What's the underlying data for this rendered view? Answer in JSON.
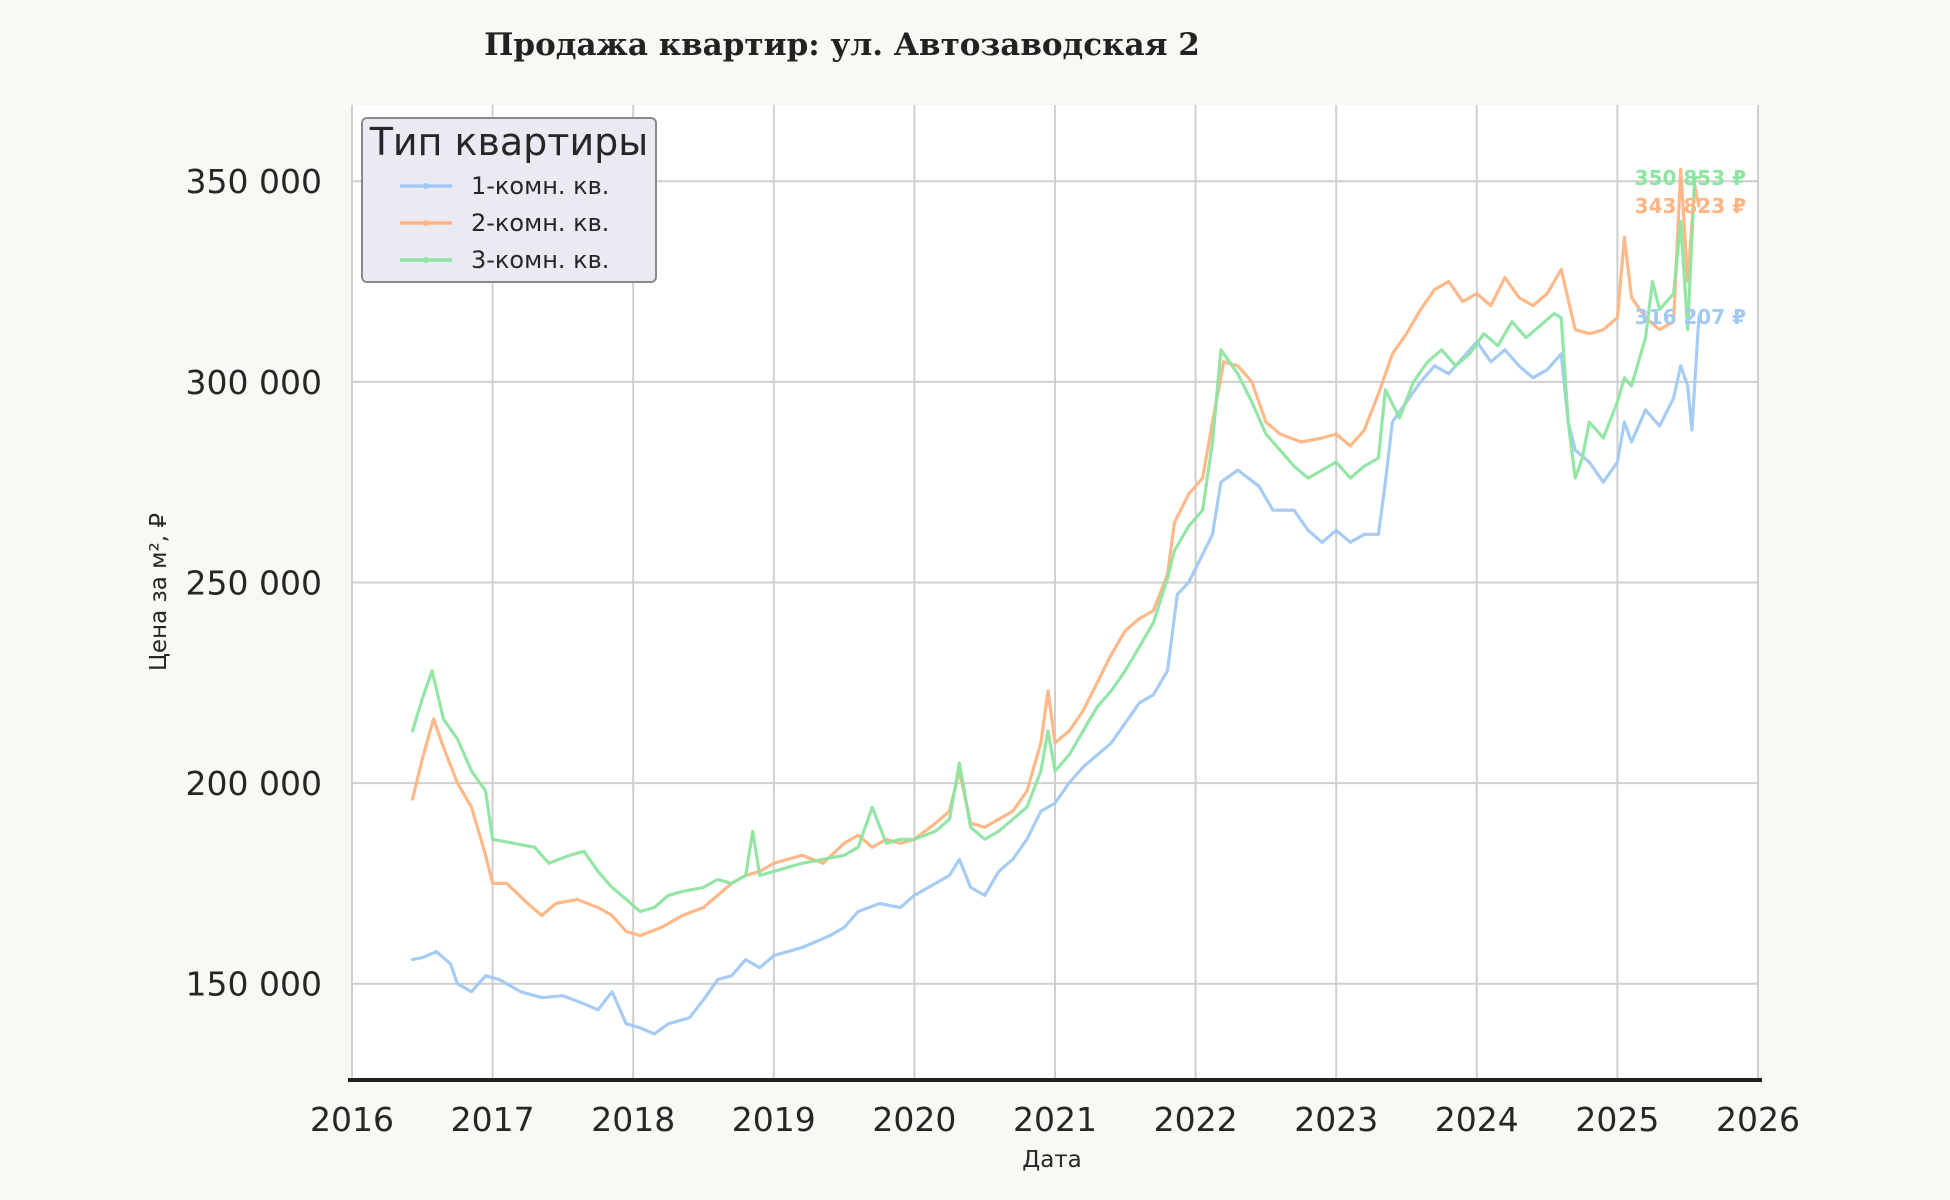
{
  "chart_data": {
    "type": "line",
    "title": "Продажа квартир: ул. Автозаводская 2",
    "xlabel": "Дата",
    "ylabel": "Цена за м², ₽",
    "xlim": [
      2016,
      2026
    ],
    "ylim": [
      126000,
      369000
    ],
    "x_ticks": [
      2016,
      2017,
      2018,
      2019,
      2020,
      2021,
      2022,
      2023,
      2024,
      2025,
      2026
    ],
    "x_tick_labels": [
      "2016",
      "2017",
      "2018",
      "2019",
      "2020",
      "2021",
      "2022",
      "2023",
      "2024",
      "2025",
      "2026"
    ],
    "y_ticks": [
      150000,
      200000,
      250000,
      300000,
      350000
    ],
    "y_tick_labels": [
      "150 000",
      "200 000",
      "250 000",
      "300 000",
      "350 000"
    ],
    "grid": true,
    "legend": {
      "title": "Тип квартиры",
      "placement": "top-left"
    },
    "series": [
      {
        "name": "1-комн. кв.",
        "color": "#a1c9f4",
        "end_label": "316 207 ₽",
        "points": [
          [
            2016.43,
            156000
          ],
          [
            2016.5,
            156500
          ],
          [
            2016.6,
            158000
          ],
          [
            2016.7,
            155000
          ],
          [
            2016.75,
            150000
          ],
          [
            2016.85,
            148000
          ],
          [
            2016.95,
            152000
          ],
          [
            2017.05,
            151000
          ],
          [
            2017.2,
            148000
          ],
          [
            2017.35,
            146500
          ],
          [
            2017.5,
            147000
          ],
          [
            2017.65,
            145000
          ],
          [
            2017.75,
            143500
          ],
          [
            2017.85,
            148000
          ],
          [
            2017.95,
            140000
          ],
          [
            2018.05,
            139000
          ],
          [
            2018.15,
            137500
          ],
          [
            2018.25,
            140000
          ],
          [
            2018.4,
            141500
          ],
          [
            2018.5,
            146000
          ],
          [
            2018.6,
            151000
          ],
          [
            2018.7,
            152000
          ],
          [
            2018.8,
            156000
          ],
          [
            2018.9,
            154000
          ],
          [
            2019.0,
            157000
          ],
          [
            2019.2,
            159000
          ],
          [
            2019.4,
            162000
          ],
          [
            2019.5,
            164000
          ],
          [
            2019.6,
            168000
          ],
          [
            2019.75,
            170000
          ],
          [
            2019.9,
            169000
          ],
          [
            2020.0,
            172000
          ],
          [
            2020.15,
            175000
          ],
          [
            2020.25,
            177000
          ],
          [
            2020.32,
            181000
          ],
          [
            2020.4,
            174000
          ],
          [
            2020.5,
            172000
          ],
          [
            2020.6,
            178000
          ],
          [
            2020.7,
            181000
          ],
          [
            2020.8,
            186000
          ],
          [
            2020.9,
            193000
          ],
          [
            2021.0,
            195000
          ],
          [
            2021.1,
            200000
          ],
          [
            2021.2,
            204000
          ],
          [
            2021.3,
            207000
          ],
          [
            2021.4,
            210000
          ],
          [
            2021.5,
            215000
          ],
          [
            2021.6,
            220000
          ],
          [
            2021.7,
            222000
          ],
          [
            2021.8,
            228000
          ],
          [
            2021.87,
            247000
          ],
          [
            2021.95,
            250000
          ],
          [
            2022.05,
            257000
          ],
          [
            2022.12,
            262000
          ],
          [
            2022.18,
            275000
          ],
          [
            2022.3,
            278000
          ],
          [
            2022.45,
            274000
          ],
          [
            2022.55,
            268000
          ],
          [
            2022.7,
            268000
          ],
          [
            2022.8,
            263000
          ],
          [
            2022.9,
            260000
          ],
          [
            2023.0,
            263000
          ],
          [
            2023.1,
            260000
          ],
          [
            2023.2,
            262000
          ],
          [
            2023.3,
            262000
          ],
          [
            2023.35,
            275000
          ],
          [
            2023.4,
            290000
          ],
          [
            2023.5,
            295000
          ],
          [
            2023.6,
            300000
          ],
          [
            2023.7,
            304000
          ],
          [
            2023.8,
            302000
          ],
          [
            2023.9,
            306000
          ],
          [
            2024.0,
            310000
          ],
          [
            2024.1,
            305000
          ],
          [
            2024.2,
            308000
          ],
          [
            2024.3,
            304000
          ],
          [
            2024.4,
            301000
          ],
          [
            2024.5,
            303000
          ],
          [
            2024.6,
            307000
          ],
          [
            2024.65,
            290000
          ],
          [
            2024.7,
            283000
          ],
          [
            2024.8,
            280000
          ],
          [
            2024.9,
            275000
          ],
          [
            2025.0,
            280000
          ],
          [
            2025.05,
            290000
          ],
          [
            2025.1,
            285000
          ],
          [
            2025.2,
            293000
          ],
          [
            2025.3,
            289000
          ],
          [
            2025.4,
            296000
          ],
          [
            2025.45,
            304000
          ],
          [
            2025.5,
            299000
          ],
          [
            2025.53,
            288000
          ],
          [
            2025.58,
            316207
          ]
        ]
      },
      {
        "name": "2-комн. кв.",
        "color": "#ffb482",
        "end_label": "343 823 ₽",
        "points": [
          [
            2016.43,
            196000
          ],
          [
            2016.5,
            206000
          ],
          [
            2016.58,
            216000
          ],
          [
            2016.65,
            209000
          ],
          [
            2016.75,
            200000
          ],
          [
            2016.85,
            194000
          ],
          [
            2016.95,
            182000
          ],
          [
            2017.0,
            175000
          ],
          [
            2017.1,
            175000
          ],
          [
            2017.25,
            170000
          ],
          [
            2017.35,
            167000
          ],
          [
            2017.45,
            170000
          ],
          [
            2017.6,
            171000
          ],
          [
            2017.75,
            169000
          ],
          [
            2017.85,
            167000
          ],
          [
            2017.95,
            163000
          ],
          [
            2018.05,
            162000
          ],
          [
            2018.2,
            164000
          ],
          [
            2018.35,
            167000
          ],
          [
            2018.5,
            169000
          ],
          [
            2018.6,
            172000
          ],
          [
            2018.7,
            175000
          ],
          [
            2018.8,
            177000
          ],
          [
            2018.9,
            178000
          ],
          [
            2019.0,
            180000
          ],
          [
            2019.2,
            182000
          ],
          [
            2019.35,
            180000
          ],
          [
            2019.5,
            185000
          ],
          [
            2019.6,
            187000
          ],
          [
            2019.7,
            184000
          ],
          [
            2019.8,
            186000
          ],
          [
            2019.9,
            185000
          ],
          [
            2020.0,
            186000
          ],
          [
            2020.15,
            190000
          ],
          [
            2020.25,
            193000
          ],
          [
            2020.32,
            203000
          ],
          [
            2020.4,
            190000
          ],
          [
            2020.5,
            189000
          ],
          [
            2020.6,
            191000
          ],
          [
            2020.7,
            193000
          ],
          [
            2020.8,
            198000
          ],
          [
            2020.9,
            210000
          ],
          [
            2020.95,
            223000
          ],
          [
            2021.0,
            210000
          ],
          [
            2021.1,
            213000
          ],
          [
            2021.2,
            218000
          ],
          [
            2021.3,
            225000
          ],
          [
            2021.4,
            232000
          ],
          [
            2021.5,
            238000
          ],
          [
            2021.6,
            241000
          ],
          [
            2021.7,
            243000
          ],
          [
            2021.8,
            252000
          ],
          [
            2021.85,
            265000
          ],
          [
            2021.95,
            272000
          ],
          [
            2022.05,
            276000
          ],
          [
            2022.12,
            290000
          ],
          [
            2022.2,
            305000
          ],
          [
            2022.3,
            304000
          ],
          [
            2022.4,
            300000
          ],
          [
            2022.5,
            290000
          ],
          [
            2022.6,
            287000
          ],
          [
            2022.75,
            285000
          ],
          [
            2022.9,
            286000
          ],
          [
            2023.0,
            287000
          ],
          [
            2023.1,
            284000
          ],
          [
            2023.2,
            288000
          ],
          [
            2023.3,
            297000
          ],
          [
            2023.4,
            307000
          ],
          [
            2023.5,
            312000
          ],
          [
            2023.6,
            318000
          ],
          [
            2023.7,
            323000
          ],
          [
            2023.8,
            325000
          ],
          [
            2023.9,
            320000
          ],
          [
            2024.0,
            322000
          ],
          [
            2024.1,
            319000
          ],
          [
            2024.2,
            326000
          ],
          [
            2024.3,
            321000
          ],
          [
            2024.4,
            319000
          ],
          [
            2024.5,
            322000
          ],
          [
            2024.6,
            328000
          ],
          [
            2024.7,
            313000
          ],
          [
            2024.8,
            312000
          ],
          [
            2024.9,
            313000
          ],
          [
            2025.0,
            316000
          ],
          [
            2025.05,
            336000
          ],
          [
            2025.1,
            321000
          ],
          [
            2025.2,
            316000
          ],
          [
            2025.3,
            313000
          ],
          [
            2025.4,
            315000
          ],
          [
            2025.45,
            353000
          ],
          [
            2025.5,
            325000
          ],
          [
            2025.55,
            349000
          ],
          [
            2025.58,
            343823
          ]
        ]
      },
      {
        "name": "3-комн. кв.",
        "color": "#8de5a1",
        "end_label": "350 853 ₽",
        "points": [
          [
            2016.43,
            213000
          ],
          [
            2016.5,
            221000
          ],
          [
            2016.57,
            228000
          ],
          [
            2016.65,
            216000
          ],
          [
            2016.75,
            211000
          ],
          [
            2016.85,
            203000
          ],
          [
            2016.95,
            198000
          ],
          [
            2017.0,
            186000
          ],
          [
            2017.15,
            185000
          ],
          [
            2017.3,
            184000
          ],
          [
            2017.4,
            180000
          ],
          [
            2017.55,
            182000
          ],
          [
            2017.65,
            183000
          ],
          [
            2017.75,
            178000
          ],
          [
            2017.85,
            174000
          ],
          [
            2017.95,
            171000
          ],
          [
            2018.05,
            168000
          ],
          [
            2018.15,
            169000
          ],
          [
            2018.25,
            172000
          ],
          [
            2018.35,
            173000
          ],
          [
            2018.5,
            174000
          ],
          [
            2018.6,
            176000
          ],
          [
            2018.7,
            175000
          ],
          [
            2018.8,
            177000
          ],
          [
            2018.85,
            188000
          ],
          [
            2018.9,
            177000
          ],
          [
            2019.0,
            178000
          ],
          [
            2019.2,
            180000
          ],
          [
            2019.35,
            181000
          ],
          [
            2019.5,
            182000
          ],
          [
            2019.6,
            184000
          ],
          [
            2019.7,
            194000
          ],
          [
            2019.8,
            185000
          ],
          [
            2019.9,
            186000
          ],
          [
            2020.0,
            186000
          ],
          [
            2020.15,
            188000
          ],
          [
            2020.25,
            191000
          ],
          [
            2020.32,
            205000
          ],
          [
            2020.4,
            189000
          ],
          [
            2020.5,
            186000
          ],
          [
            2020.6,
            188000
          ],
          [
            2020.7,
            191000
          ],
          [
            2020.8,
            194000
          ],
          [
            2020.9,
            203000
          ],
          [
            2020.95,
            213000
          ],
          [
            2021.0,
            203000
          ],
          [
            2021.1,
            207000
          ],
          [
            2021.2,
            213000
          ],
          [
            2021.3,
            219000
          ],
          [
            2021.4,
            223000
          ],
          [
            2021.5,
            228000
          ],
          [
            2021.6,
            234000
          ],
          [
            2021.7,
            240000
          ],
          [
            2021.8,
            251000
          ],
          [
            2021.85,
            258000
          ],
          [
            2021.95,
            264000
          ],
          [
            2022.05,
            268000
          ],
          [
            2022.12,
            285000
          ],
          [
            2022.18,
            308000
          ],
          [
            2022.3,
            302000
          ],
          [
            2022.4,
            295000
          ],
          [
            2022.5,
            287000
          ],
          [
            2022.6,
            283000
          ],
          [
            2022.7,
            279000
          ],
          [
            2022.8,
            276000
          ],
          [
            2022.9,
            278000
          ],
          [
            2023.0,
            280000
          ],
          [
            2023.1,
            276000
          ],
          [
            2023.2,
            279000
          ],
          [
            2023.3,
            281000
          ],
          [
            2023.35,
            298000
          ],
          [
            2023.45,
            291000
          ],
          [
            2023.55,
            300000
          ],
          [
            2023.65,
            305000
          ],
          [
            2023.75,
            308000
          ],
          [
            2023.85,
            304000
          ],
          [
            2023.95,
            307000
          ],
          [
            2024.05,
            312000
          ],
          [
            2024.15,
            309000
          ],
          [
            2024.25,
            315000
          ],
          [
            2024.35,
            311000
          ],
          [
            2024.45,
            314000
          ],
          [
            2024.55,
            317000
          ],
          [
            2024.6,
            316000
          ],
          [
            2024.65,
            290000
          ],
          [
            2024.7,
            276000
          ],
          [
            2024.75,
            281000
          ],
          [
            2024.8,
            290000
          ],
          [
            2024.9,
            286000
          ],
          [
            2025.0,
            295000
          ],
          [
            2025.05,
            301000
          ],
          [
            2025.1,
            299000
          ],
          [
            2025.2,
            311000
          ],
          [
            2025.25,
            325000
          ],
          [
            2025.3,
            318000
          ],
          [
            2025.4,
            322000
          ],
          [
            2025.45,
            340000
          ],
          [
            2025.5,
            313000
          ],
          [
            2025.55,
            351000
          ],
          [
            2025.58,
            350853
          ]
        ]
      }
    ]
  }
}
